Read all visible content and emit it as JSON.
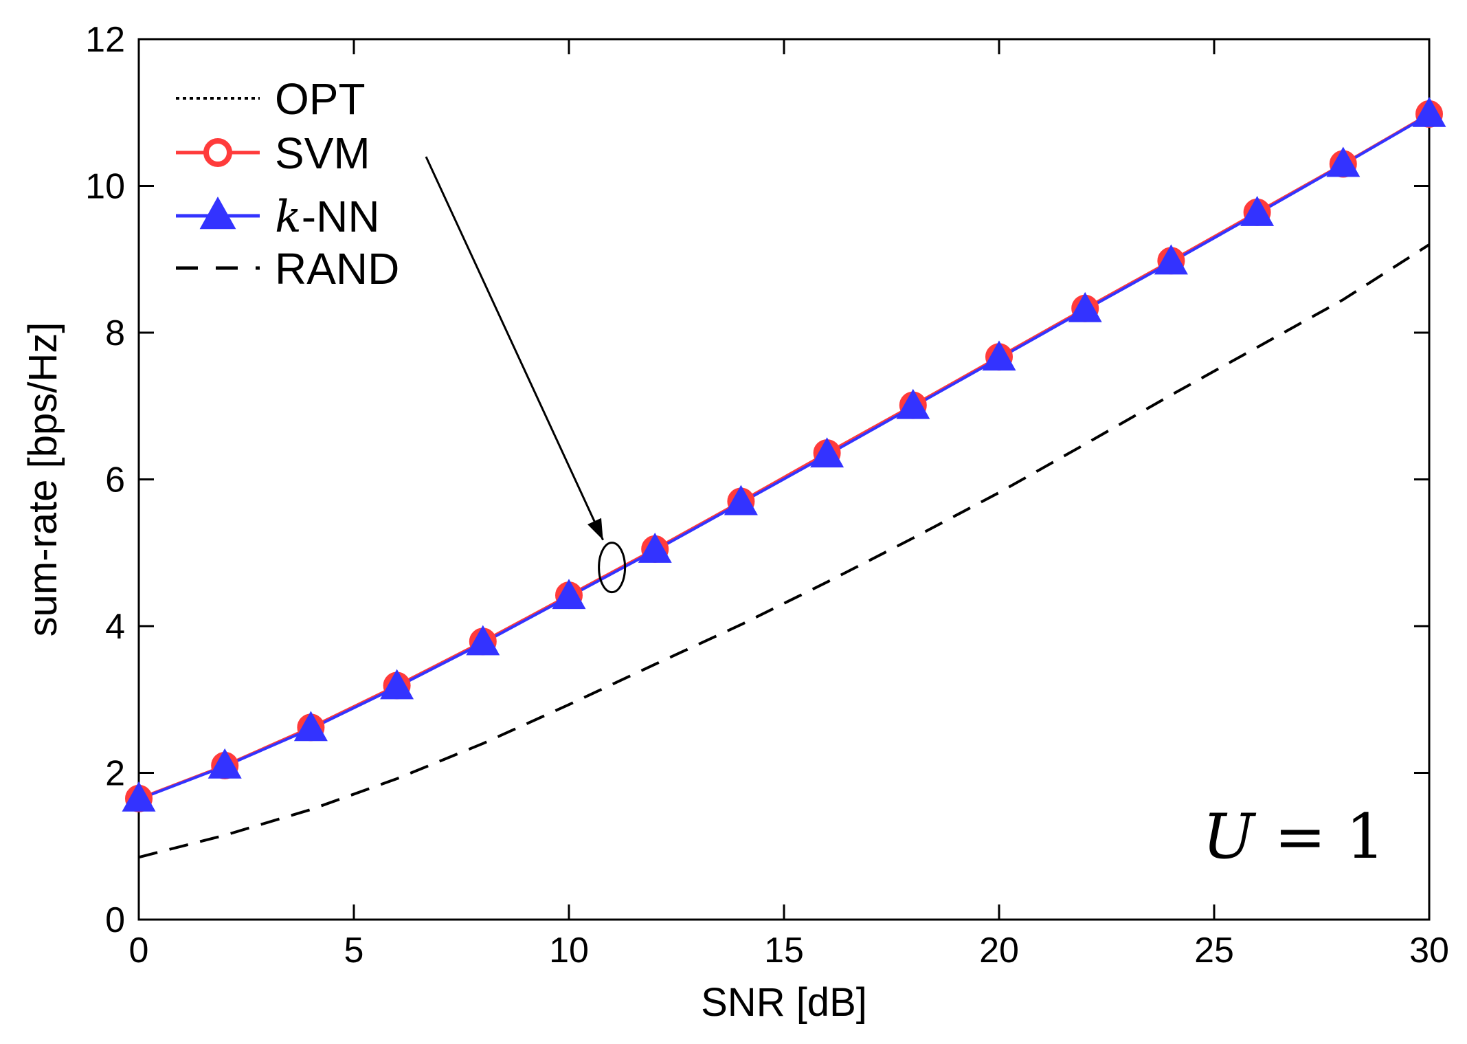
{
  "chart_data": {
    "type": "line",
    "title": "",
    "xlabel": "SNR [dB]",
    "ylabel": "sum-rate [bps/Hz]",
    "xlim": [
      0,
      30
    ],
    "ylim": [
      0,
      12
    ],
    "xticks": [
      0,
      5,
      10,
      15,
      20,
      25,
      30
    ],
    "yticks": [
      0,
      2,
      4,
      6,
      8,
      10,
      12
    ],
    "grid": false,
    "legend_position": "top-left",
    "annotation": "U = 1",
    "series": [
      {
        "name": "OPT",
        "style": "dotted",
        "marker": "none",
        "color": "#000000",
        "x": [
          0,
          2,
          4,
          6,
          8,
          10,
          12,
          14,
          16,
          18,
          20,
          22,
          24,
          26,
          28,
          30
        ],
        "values": [
          1.65,
          2.1,
          2.62,
          3.19,
          3.79,
          4.42,
          5.05,
          5.7,
          6.36,
          7.01,
          7.67,
          8.33,
          8.98,
          9.64,
          10.3,
          10.98
        ]
      },
      {
        "name": "SVM",
        "style": "solid",
        "marker": "circle",
        "color": "#ff3b3b",
        "x": [
          0,
          2,
          4,
          6,
          8,
          10,
          12,
          14,
          16,
          18,
          20,
          22,
          24,
          26,
          28,
          30
        ],
        "values": [
          1.65,
          2.1,
          2.62,
          3.19,
          3.79,
          4.42,
          5.05,
          5.7,
          6.36,
          7.01,
          7.67,
          8.33,
          8.98,
          9.64,
          10.3,
          10.98
        ]
      },
      {
        "name": "k-NN",
        "legend_italic": "k",
        "legend_rest": "-NN",
        "style": "solid",
        "marker": "triangle",
        "color": "#3333ff",
        "x": [
          0,
          2,
          4,
          6,
          8,
          10,
          12,
          14,
          16,
          18,
          20,
          22,
          24,
          26,
          28,
          30
        ],
        "values": [
          1.64,
          2.09,
          2.6,
          3.17,
          3.77,
          4.4,
          5.03,
          5.68,
          6.33,
          6.99,
          7.65,
          8.31,
          8.96,
          9.62,
          10.29,
          10.97
        ]
      },
      {
        "name": "RAND",
        "style": "dashed",
        "marker": "none",
        "color": "#000000",
        "x": [
          0,
          2,
          4,
          6,
          8,
          10,
          12,
          14,
          16,
          18,
          20,
          22,
          24,
          26,
          28,
          30
        ],
        "values": [
          0.85,
          1.15,
          1.5,
          1.92,
          2.4,
          2.93,
          3.48,
          4.02,
          4.6,
          5.2,
          5.82,
          6.48,
          7.15,
          7.8,
          8.45,
          9.2
        ]
      }
    ]
  }
}
